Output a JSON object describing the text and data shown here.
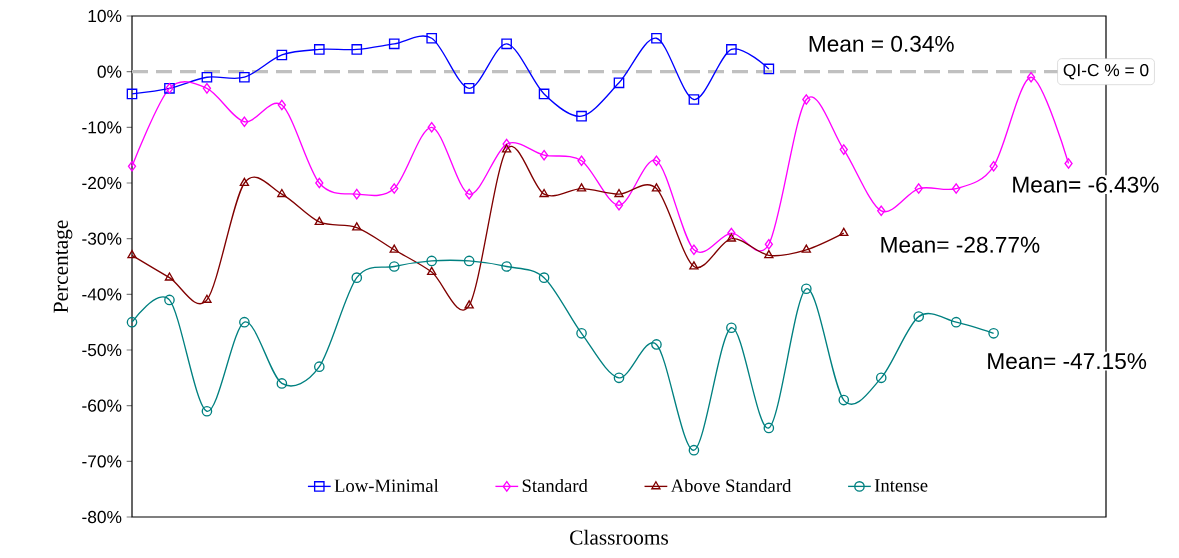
{
  "chart_data": {
    "type": "line",
    "xlabel": "Classrooms",
    "ylabel": "Percentage",
    "categories": [
      null,
      null,
      null,
      null,
      null,
      null,
      null,
      null,
      null,
      null,
      null,
      null,
      null,
      null,
      null,
      null,
      null,
      null,
      null,
      null,
      null,
      null,
      null,
      null,
      null,
      null
    ],
    "ylim": [
      -80,
      10
    ],
    "yticks": [
      {
        "value": -80,
        "label": "-80%"
      },
      {
        "value": -70,
        "label": "-70%"
      },
      {
        "value": -60,
        "label": "-60%"
      },
      {
        "value": -50,
        "label": "-50%"
      },
      {
        "value": -40,
        "label": "-40%"
      },
      {
        "value": -30,
        "label": "-30%"
      },
      {
        "value": -20,
        "label": "-20%"
      },
      {
        "value": -10,
        "label": "-10%"
      },
      {
        "value": 0,
        "label": "0%"
      },
      {
        "value": 10,
        "label": "10%"
      }
    ],
    "series": [
      {
        "name": "Low-Minimal",
        "color": "#0000ff",
        "marker": "square",
        "values": [
          -4,
          -3,
          -1,
          -1,
          3,
          4,
          4,
          5,
          6,
          -3,
          5,
          -4,
          -8,
          -2,
          6,
          -5,
          4,
          0.5,
          null,
          null,
          null,
          null,
          null,
          null,
          null,
          null
        ]
      },
      {
        "name": "Standard",
        "color": "#ff00ff",
        "marker": "diamond",
        "values": [
          -17,
          -3,
          -3,
          -9,
          -6,
          -20,
          -22,
          -21,
          -10,
          -22,
          -13,
          -15,
          -16,
          -24,
          -16,
          -32,
          -29,
          -31,
          -5,
          -14,
          -25,
          -21,
          -21,
          -17,
          -1,
          -16.5
        ]
      },
      {
        "name": "Above Standard",
        "color": "#800000",
        "marker": "triangle",
        "values": [
          -33,
          -37,
          -41,
          -20,
          -22,
          -27,
          -28,
          -32,
          -36,
          -42,
          -14,
          -22,
          -21,
          -22,
          -21,
          -35,
          -30,
          -33,
          -32,
          -29,
          null,
          null,
          null,
          null,
          null,
          null
        ]
      },
      {
        "name": "Intense",
        "color": "#008080",
        "marker": "circle",
        "values": [
          -45,
          -41,
          -61,
          -45,
          -56,
          -53,
          -37,
          -35,
          -34,
          -34,
          -35,
          -37,
          -47,
          -55,
          -49,
          -68,
          -46,
          -64,
          -39,
          -59,
          -55,
          -44,
          -45,
          -47,
          null,
          null
        ]
      }
    ],
    "ref_lines": [
      {
        "axis": "y",
        "value": 0,
        "label": "QI-C % = 0",
        "color": "#c0c0c0",
        "line_style": "dashed"
      }
    ],
    "annotations": [
      "Mean = 0.34%",
      "Mean= -6.43%",
      "Mean= -28.77%",
      "Mean= -47.15%"
    ],
    "legend": "bottom",
    "line_style": "solid"
  }
}
